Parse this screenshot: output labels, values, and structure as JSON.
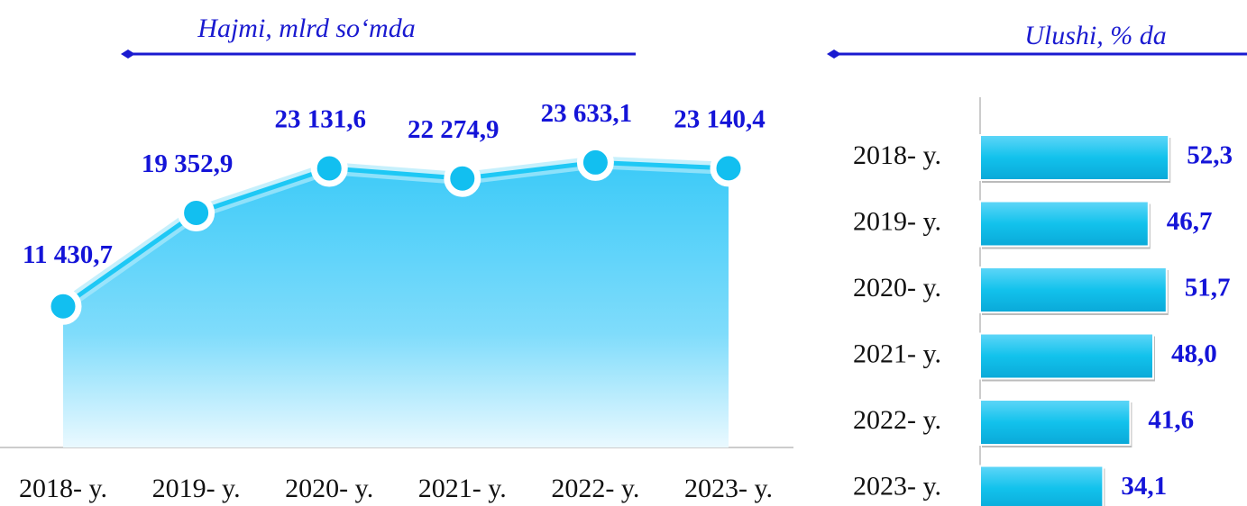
{
  "chart_data": [
    {
      "type": "area",
      "title": "Hajmi, mlrd so‘mda",
      "categories": [
        "2018- y.",
        "2019- y.",
        "2020- y.",
        "2021- y.",
        "2022- y.",
        "2023- y."
      ],
      "values": [
        11430.7,
        19352.9,
        23131.6,
        22274.9,
        23633.1,
        23140.4
      ],
      "value_labels": [
        "11 430,7",
        "19 352,9",
        "23 131,6",
        "22 274,9",
        "23 633,1",
        "23 140,4"
      ],
      "color": "#1ec8f5",
      "ylim": [
        0,
        30000
      ]
    },
    {
      "type": "hbar",
      "title": "Ulushi, % da",
      "categories": [
        "2018- y.",
        "2019- y.",
        "2020- y.",
        "2021- y.",
        "2022- y.",
        "2023- y."
      ],
      "values": [
        52.3,
        46.7,
        51.7,
        48.0,
        41.6,
        34.1
      ],
      "value_labels": [
        "52,3",
        "46,7",
        "51,7",
        "48,0",
        "41,6",
        "34,1"
      ],
      "color": "#12c2ec",
      "xlim": [
        0,
        60
      ]
    }
  ]
}
